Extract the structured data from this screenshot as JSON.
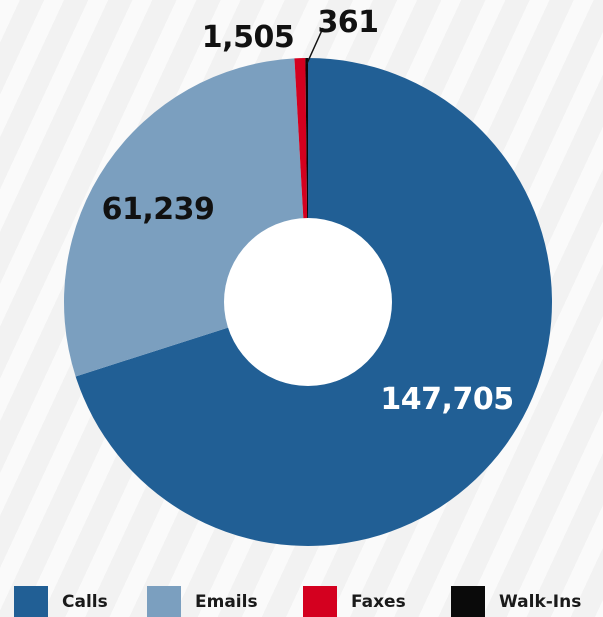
{
  "chart_data": {
    "type": "pie",
    "donut": true,
    "categories": [
      "Calls",
      "Emails",
      "Faxes",
      "Walk-Ins"
    ],
    "values": [
      147705,
      61239,
      1505,
      361
    ],
    "labels": [
      "147,705",
      "61,239",
      "1,505",
      "361"
    ],
    "colors": [
      "#215f95",
      "#7b9fbf",
      "#d4001f",
      "#0a0a0a"
    ],
    "label_colors": [
      "#ffffff",
      "#111111",
      "#111111",
      "#111111"
    ],
    "legend_placement": "bottom",
    "start_angle_degrees": 0,
    "direction": "clockwise"
  },
  "legend": {
    "items": [
      {
        "label": "Calls",
        "color": "#215f95"
      },
      {
        "label": "Emails",
        "color": "#7b9fbf"
      },
      {
        "label": "Faxes",
        "color": "#d4001f"
      },
      {
        "label": "Walk-Ins",
        "color": "#0a0a0a"
      }
    ]
  }
}
